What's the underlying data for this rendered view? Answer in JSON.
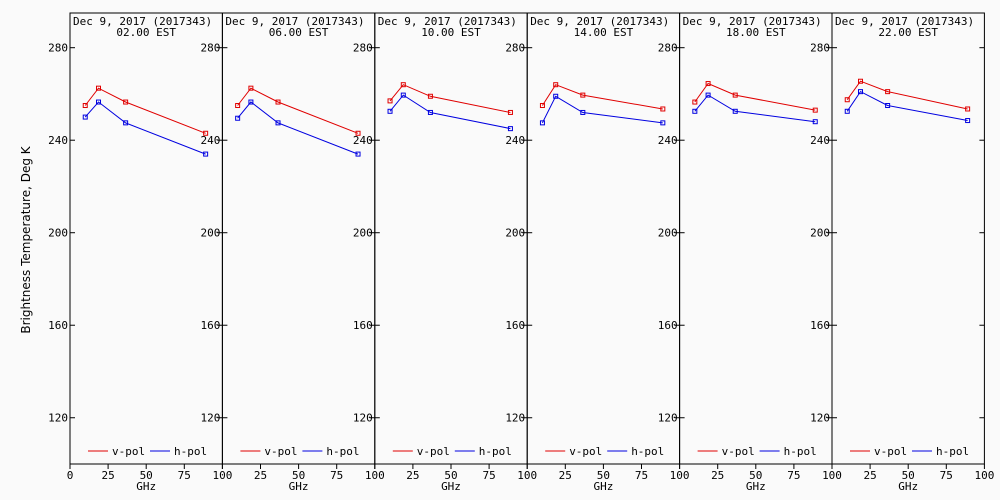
{
  "chart_data": {
    "type": "line",
    "ylabel": "Brightness Temperature, Deg K",
    "xlabel": "GHz",
    "xlim": [
      0,
      100
    ],
    "ylim": [
      100,
      295
    ],
    "yticks": [
      120,
      160,
      200,
      240,
      280
    ],
    "xtick_values": [
      0,
      25,
      50,
      75,
      100
    ],
    "legend": {
      "position": "bottom"
    },
    "panels": [
      {
        "title": "Dec  9, 2017 (2017343)",
        "time": "02.00 EST",
        "xticklabels": [
          "0",
          "25",
          "50",
          "75",
          "100"
        ],
        "series": [
          {
            "name": "v-pol",
            "color": "#e00000",
            "x": [
              10,
              18.7,
              36.5,
              89
            ],
            "y": [
              255,
              262.5,
              256.5,
              243
            ]
          },
          {
            "name": "h-pol",
            "color": "#0000e0",
            "x": [
              10,
              18.7,
              36.5,
              89
            ],
            "y": [
              250,
              256.5,
              247.5,
              234
            ]
          }
        ]
      },
      {
        "title": "Dec  9, 2017 (2017343)",
        "time": "06.00 EST",
        "xticklabels": [
          "",
          "25",
          "50",
          "75",
          "100"
        ],
        "series": [
          {
            "name": "v-pol",
            "color": "#e00000",
            "x": [
              10,
              18.7,
              36.5,
              89
            ],
            "y": [
              255,
              262.5,
              256.5,
              243
            ]
          },
          {
            "name": "h-pol",
            "color": "#0000e0",
            "x": [
              10,
              18.7,
              36.5,
              89
            ],
            "y": [
              249.5,
              256.5,
              247.5,
              234
            ]
          }
        ]
      },
      {
        "title": "Dec  9, 2017 (2017343)",
        "time": "10.00 EST",
        "xticklabels": [
          "",
          "25",
          "50",
          "75",
          "100"
        ],
        "series": [
          {
            "name": "v-pol",
            "color": "#e00000",
            "x": [
              10,
              18.7,
              36.5,
              89
            ],
            "y": [
              257,
              264,
              259,
              252
            ]
          },
          {
            "name": "h-pol",
            "color": "#0000e0",
            "x": [
              10,
              18.7,
              36.5,
              89
            ],
            "y": [
              252.5,
              259.5,
              252,
              245
            ]
          }
        ]
      },
      {
        "title": "Dec  9, 2017 (2017343)",
        "time": "14.00 EST",
        "xticklabels": [
          "",
          "25",
          "50",
          "75",
          "100"
        ],
        "series": [
          {
            "name": "v-pol",
            "color": "#e00000",
            "x": [
              10,
              18.7,
              36.5,
              89
            ],
            "y": [
              255,
              264,
              259.5,
              253.5
            ]
          },
          {
            "name": "h-pol",
            "color": "#0000e0",
            "x": [
              10,
              18.7,
              36.5,
              89
            ],
            "y": [
              247.5,
              259,
              252,
              247.5
            ]
          }
        ]
      },
      {
        "title": "Dec  9, 2017 (2017343)",
        "time": "18.00 EST",
        "xticklabels": [
          "",
          "25",
          "50",
          "75",
          "100"
        ],
        "series": [
          {
            "name": "v-pol",
            "color": "#e00000",
            "x": [
              10,
              18.7,
              36.5,
              89
            ],
            "y": [
              256.5,
              264.5,
              259.5,
              253
            ]
          },
          {
            "name": "h-pol",
            "color": "#0000e0",
            "x": [
              10,
              18.7,
              36.5,
              89
            ],
            "y": [
              252.5,
              259.5,
              252.5,
              248
            ]
          }
        ]
      },
      {
        "title": "Dec  9, 2017 (2017343)",
        "time": "22.00 EST",
        "xticklabels": [
          "",
          "25",
          "50",
          "75",
          "100"
        ],
        "series": [
          {
            "name": "v-pol",
            "color": "#e00000",
            "x": [
              10,
              18.7,
              36.5,
              89
            ],
            "y": [
              257.5,
              265.5,
              261,
              253.5
            ]
          },
          {
            "name": "h-pol",
            "color": "#0000e0",
            "x": [
              10,
              18.7,
              36.5,
              89
            ],
            "y": [
              252.5,
              261,
              255,
              248.5
            ]
          }
        ]
      }
    ]
  }
}
